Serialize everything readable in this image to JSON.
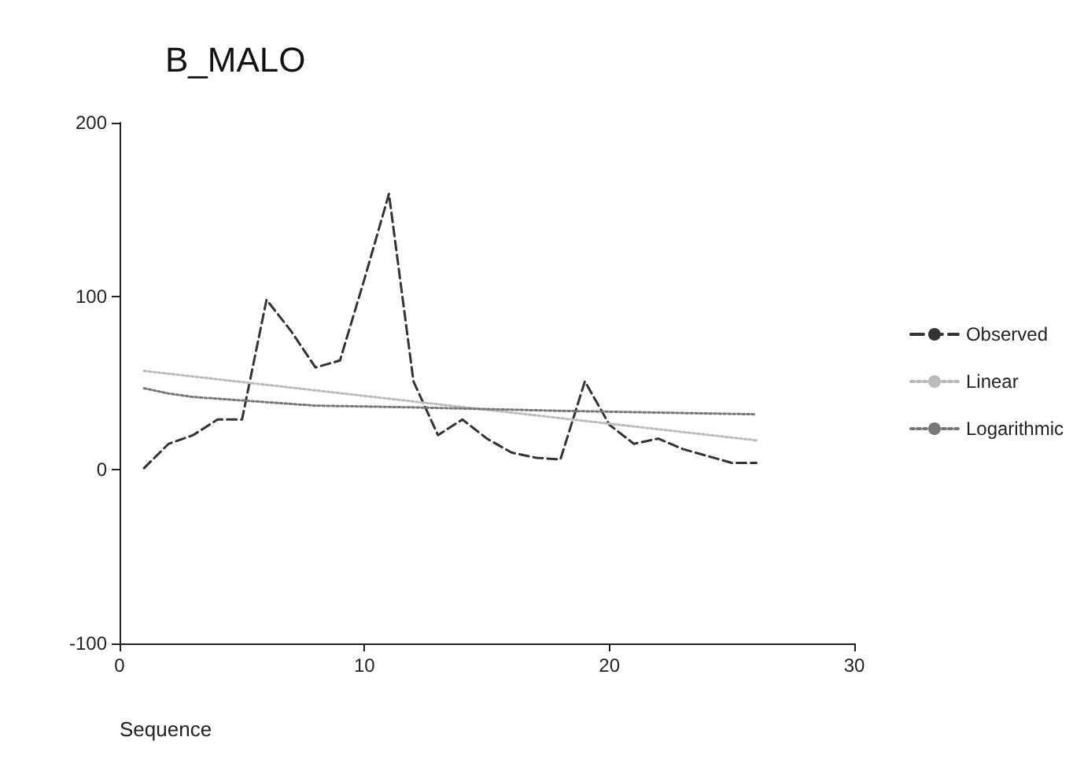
{
  "chart_data": {
    "type": "line",
    "title": "B_MALO",
    "xlabel": "Sequence",
    "xlim": [
      0,
      30
    ],
    "xticks": [
      0,
      10,
      20,
      30
    ],
    "ylim": [
      -100,
      200
    ],
    "yticks": [
      -100,
      0,
      100,
      200
    ],
    "grid": false,
    "legend": "right",
    "marker": "none",
    "series": [
      {
        "name": "Observed",
        "color": "#333333",
        "line_style": "dashed",
        "x": [
          1,
          2,
          3,
          4,
          5,
          6,
          7,
          8,
          9,
          10,
          11,
          12,
          13,
          14,
          15,
          16,
          17,
          18,
          19,
          20,
          21,
          22,
          23,
          24,
          25,
          26
        ],
        "values": [
          1,
          15,
          20,
          29,
          29,
          98,
          80,
          59,
          63,
          110,
          159,
          51,
          20,
          29,
          18,
          10,
          7,
          6,
          51,
          26,
          15,
          18,
          12,
          8,
          4,
          4
        ]
      },
      {
        "name": "Linear",
        "color": "#bbbbbb",
        "line_style": "dotted",
        "x": [
          1,
          26
        ],
        "values": [
          57,
          17
        ]
      },
      {
        "name": "Logarithmic",
        "color": "#777777",
        "line_style": "dotted",
        "x": [
          1,
          2,
          3,
          5,
          8,
          12,
          18,
          26
        ],
        "values": [
          47,
          44,
          42,
          40,
          37,
          36,
          34,
          32
        ]
      }
    ]
  }
}
